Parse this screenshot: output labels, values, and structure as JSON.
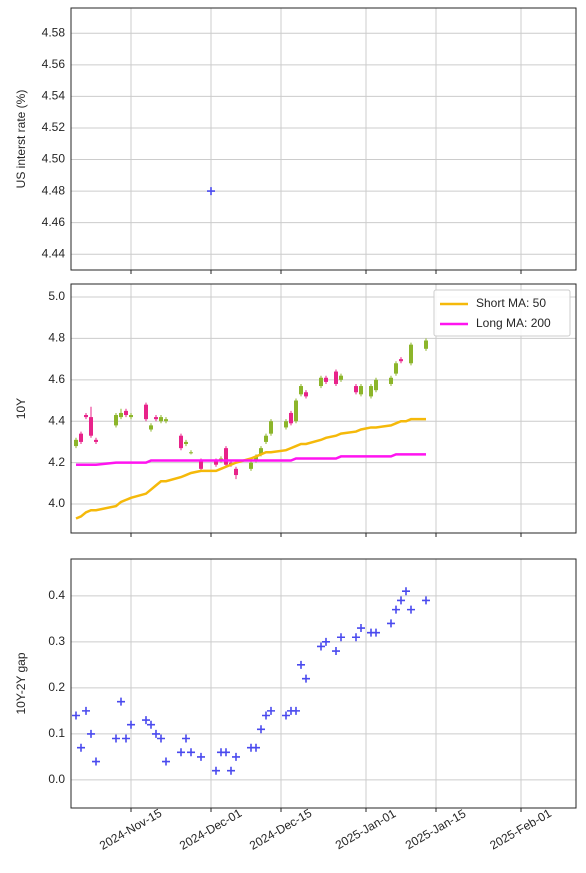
{
  "chart_data": [
    {
      "type": "scatter",
      "ylabel": "US interst rate (%)",
      "color": "#4a4aee",
      "marker": "+",
      "x": [
        "2024-12-01"
      ],
      "values": [
        4.48
      ],
      "xlim": [
        "2024-11-03",
        "2025-02-12"
      ],
      "xticks": [
        "2024-11-15",
        "2024-12-01",
        "2024-12-15",
        "2025-01-01",
        "2025-01-15",
        "2025-02-01"
      ],
      "ylim": [
        4.43,
        4.596
      ],
      "yticks": [
        4.44,
        4.46,
        4.48,
        {
          "value": 4.5,
          "label": "4.50"
        },
        4.52,
        4.54,
        4.56,
        4.58
      ],
      "grid": true
    },
    {
      "type": "candlestick",
      "ylabel": "10Y",
      "up_color": "#8cb52a",
      "down_color": "#e8238a",
      "x": [
        "2024-11-04",
        "2024-11-05",
        "2024-11-06",
        "2024-11-07",
        "2024-11-08",
        "2024-11-12",
        "2024-11-13",
        "2024-11-14",
        "2024-11-15",
        "2024-11-18",
        "2024-11-19",
        "2024-11-20",
        "2024-11-21",
        "2024-11-22",
        "2024-11-25",
        "2024-11-26",
        "2024-11-27",
        "2024-11-29",
        "2024-12-02",
        "2024-12-03",
        "2024-12-04",
        "2024-12-05",
        "2024-12-06",
        "2024-12-09",
        "2024-12-10",
        "2024-12-11",
        "2024-12-12",
        "2024-12-13",
        "2024-12-16",
        "2024-12-17",
        "2024-12-18",
        "2024-12-19",
        "2024-12-20",
        "2024-12-23",
        "2024-12-24",
        "2024-12-26",
        "2024-12-27",
        "2024-12-30",
        "2024-12-31",
        "2025-01-02",
        "2025-01-03",
        "2025-01-06",
        "2025-01-07",
        "2025-01-08",
        "2025-01-09",
        "2025-01-10",
        "2025-01-13"
      ],
      "open": [
        4.28,
        4.34,
        4.43,
        4.42,
        4.31,
        4.38,
        4.42,
        4.45,
        4.42,
        4.48,
        4.36,
        4.42,
        4.4,
        4.4,
        4.33,
        4.29,
        4.25,
        4.21,
        4.21,
        4.21,
        4.27,
        4.2,
        4.17,
        4.17,
        4.21,
        4.24,
        4.3,
        4.34,
        4.37,
        4.44,
        4.4,
        4.53,
        4.54,
        4.57,
        4.61,
        4.64,
        4.6,
        4.57,
        4.53,
        4.52,
        4.55,
        4.58,
        4.63,
        4.7,
        null,
        4.68,
        4.75
      ],
      "high": [
        4.32,
        4.35,
        4.44,
        4.47,
        4.32,
        4.44,
        4.46,
        4.46,
        4.44,
        4.49,
        4.39,
        4.43,
        4.43,
        4.42,
        4.34,
        4.31,
        4.26,
        4.22,
        4.22,
        4.23,
        4.28,
        4.21,
        4.18,
        4.21,
        4.24,
        4.28,
        4.34,
        4.41,
        4.41,
        4.45,
        4.51,
        4.58,
        4.55,
        4.62,
        4.62,
        4.65,
        4.63,
        4.58,
        4.58,
        4.58,
        4.61,
        4.62,
        4.69,
        4.71,
        null,
        4.78,
        4.8
      ],
      "low": [
        4.27,
        4.29,
        4.41,
        4.32,
        4.29,
        4.37,
        4.41,
        4.42,
        4.41,
        4.4,
        4.35,
        4.4,
        4.39,
        4.39,
        4.26,
        4.28,
        4.24,
        4.16,
        4.18,
        4.2,
        4.18,
        4.18,
        4.12,
        4.16,
        4.2,
        4.23,
        4.29,
        4.33,
        4.36,
        4.38,
        4.39,
        4.52,
        4.51,
        4.56,
        4.58,
        4.57,
        4.59,
        4.53,
        4.52,
        4.51,
        4.54,
        4.57,
        4.62,
        4.68,
        null,
        4.67,
        4.74
      ],
      "close": [
        4.31,
        4.3,
        4.42,
        4.33,
        4.3,
        4.43,
        4.44,
        4.43,
        4.43,
        4.41,
        4.38,
        4.41,
        4.42,
        4.41,
        4.27,
        4.3,
        4.25,
        4.17,
        4.19,
        4.22,
        4.19,
        4.19,
        4.14,
        4.2,
        4.23,
        4.27,
        4.33,
        4.4,
        4.4,
        4.39,
        4.5,
        4.57,
        4.52,
        4.61,
        4.59,
        4.58,
        4.62,
        4.54,
        4.57,
        4.57,
        4.6,
        4.61,
        4.68,
        4.69,
        null,
        4.77,
        4.79
      ],
      "series": [
        {
          "name": "Short MA: 50",
          "color": "#f5b90a",
          "values": [
            3.93,
            3.94,
            3.96,
            3.97,
            3.97,
            3.99,
            4.01,
            4.02,
            4.03,
            4.05,
            4.07,
            4.09,
            4.11,
            4.11,
            4.13,
            4.14,
            4.15,
            4.16,
            4.16,
            4.17,
            4.18,
            4.19,
            4.2,
            4.22,
            4.23,
            4.24,
            4.25,
            4.25,
            4.26,
            4.27,
            4.28,
            4.29,
            4.29,
            4.31,
            4.32,
            4.33,
            4.34,
            4.35,
            4.36,
            4.37,
            4.37,
            4.38,
            4.39,
            4.4,
            4.4,
            4.41,
            4.41
          ]
        },
        {
          "name": "Long MA: 200",
          "color": "#ff14f0",
          "values": [
            4.19,
            4.19,
            4.19,
            4.19,
            4.19,
            4.2,
            4.2,
            4.2,
            4.2,
            4.2,
            4.21,
            4.21,
            4.21,
            4.21,
            4.21,
            4.21,
            4.21,
            4.21,
            4.21,
            4.21,
            4.21,
            4.21,
            4.21,
            4.21,
            4.21,
            4.21,
            4.21,
            4.21,
            4.21,
            4.21,
            4.22,
            4.22,
            4.22,
            4.22,
            4.22,
            4.22,
            4.23,
            4.23,
            4.23,
            4.23,
            4.23,
            4.23,
            4.24,
            4.24,
            4.24,
            4.24,
            4.24
          ]
        }
      ],
      "legend": "upper right",
      "xlim": [
        "2024-11-03",
        "2025-02-12"
      ],
      "xticks": [
        "2024-11-15",
        "2024-12-01",
        "2024-12-15",
        "2025-01-01",
        "2025-01-15",
        "2025-02-01"
      ],
      "ylim": [
        3.86,
        5.063
      ],
      "yticks": [
        {
          "value": 4.0,
          "label": "4.0"
        },
        4.2,
        4.4,
        4.6,
        4.8,
        {
          "value": 5.0,
          "label": "5.0"
        }
      ],
      "grid": true
    },
    {
      "type": "scatter",
      "ylabel": "10Y-2Y gap",
      "color": "#4a4aee",
      "marker": "+",
      "x": [
        "2024-11-04",
        "2024-11-05",
        "2024-11-06",
        "2024-11-07",
        "2024-11-08",
        "2024-11-12",
        "2024-11-13",
        "2024-11-14",
        "2024-11-15",
        "2024-11-18",
        "2024-11-19",
        "2024-11-20",
        "2024-11-21",
        "2024-11-22",
        "2024-11-25",
        "2024-11-26",
        "2024-11-27",
        "2024-11-29",
        "2024-12-02",
        "2024-12-03",
        "2024-12-04",
        "2024-12-05",
        "2024-12-06",
        "2024-12-09",
        "2024-12-10",
        "2024-12-11",
        "2024-12-12",
        "2024-12-13",
        "2024-12-16",
        "2024-12-17",
        "2024-12-18",
        "2024-12-19",
        "2024-12-20",
        "2024-12-23",
        "2024-12-24",
        "2024-12-26",
        "2024-12-27",
        "2024-12-30",
        "2024-12-31",
        "2025-01-02",
        "2025-01-03",
        "2025-01-06",
        "2025-01-07",
        "2025-01-08",
        "2025-01-09",
        "2025-01-10",
        "2025-01-13"
      ],
      "values": [
        0.14,
        0.07,
        0.15,
        0.1,
        0.04,
        0.09,
        0.17,
        0.09,
        0.12,
        0.13,
        0.12,
        0.1,
        0.09,
        0.04,
        0.06,
        0.09,
        0.06,
        0.05,
        0.02,
        0.06,
        0.06,
        0.02,
        0.05,
        0.07,
        0.07,
        0.11,
        0.14,
        0.15,
        0.14,
        0.15,
        0.15,
        0.25,
        0.22,
        0.29,
        0.3,
        0.28,
        0.31,
        0.31,
        0.33,
        0.32,
        0.32,
        0.34,
        0.37,
        0.39,
        0.41,
        0.37,
        0.39
      ],
      "xlim": [
        "2024-11-03",
        "2025-02-12"
      ],
      "xticks": [
        {
          "value": "2024-11-15",
          "label": "2024-Nov-15"
        },
        {
          "value": "2024-12-01",
          "label": "2024-Dec-01"
        },
        {
          "value": "2024-12-15",
          "label": "2024-Dec-15"
        },
        {
          "value": "2025-01-01",
          "label": "2025-Jan-01"
        },
        {
          "value": "2025-01-15",
          "label": "2025-Jan-15"
        },
        {
          "value": "2025-02-01",
          "label": "2025-Feb-01"
        }
      ],
      "ylim": [
        -0.061,
        0.48
      ],
      "yticks": [
        {
          "value": 0.0,
          "label": "0.0"
        },
        0.1,
        0.2,
        0.3,
        0.4
      ],
      "grid": true
    }
  ]
}
